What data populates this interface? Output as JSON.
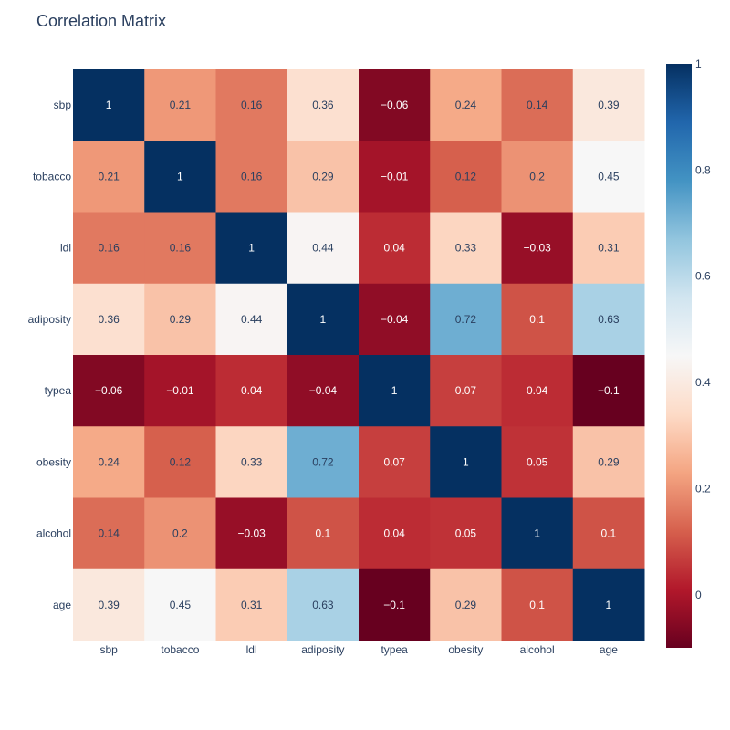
{
  "chart_data": {
    "type": "heatmap",
    "title": "Correlation Matrix",
    "x": [
      "sbp",
      "tobacco",
      "ldl",
      "adiposity",
      "typea",
      "obesity",
      "alcohol",
      "age"
    ],
    "y": [
      "sbp",
      "tobacco",
      "ldl",
      "adiposity",
      "typea",
      "obesity",
      "alcohol",
      "age"
    ],
    "z": [
      [
        1,
        0.21,
        0.16,
        0.36,
        -0.06,
        0.24,
        0.14,
        0.39
      ],
      [
        0.21,
        1,
        0.16,
        0.29,
        -0.01,
        0.12,
        0.2,
        0.45
      ],
      [
        0.16,
        0.16,
        1,
        0.44,
        0.04,
        0.33,
        -0.03,
        0.31
      ],
      [
        0.36,
        0.29,
        0.44,
        1,
        -0.04,
        0.72,
        0.1,
        0.63
      ],
      [
        -0.06,
        -0.01,
        0.04,
        -0.04,
        1,
        0.07,
        0.04,
        -0.1
      ],
      [
        0.24,
        0.12,
        0.33,
        0.72,
        0.07,
        1,
        0.05,
        0.29
      ],
      [
        0.14,
        0.2,
        -0.03,
        0.1,
        0.04,
        0.05,
        1,
        0.1
      ],
      [
        0.39,
        0.45,
        0.31,
        0.63,
        -0.1,
        0.29,
        0.1,
        1
      ]
    ],
    "zmin": -0.1,
    "zmax": 1,
    "colorscale": "RdBu",
    "colorbar_ticks": [
      0,
      0.2,
      0.4,
      0.6,
      0.8,
      1
    ],
    "grid": false,
    "legend_position": "right"
  }
}
